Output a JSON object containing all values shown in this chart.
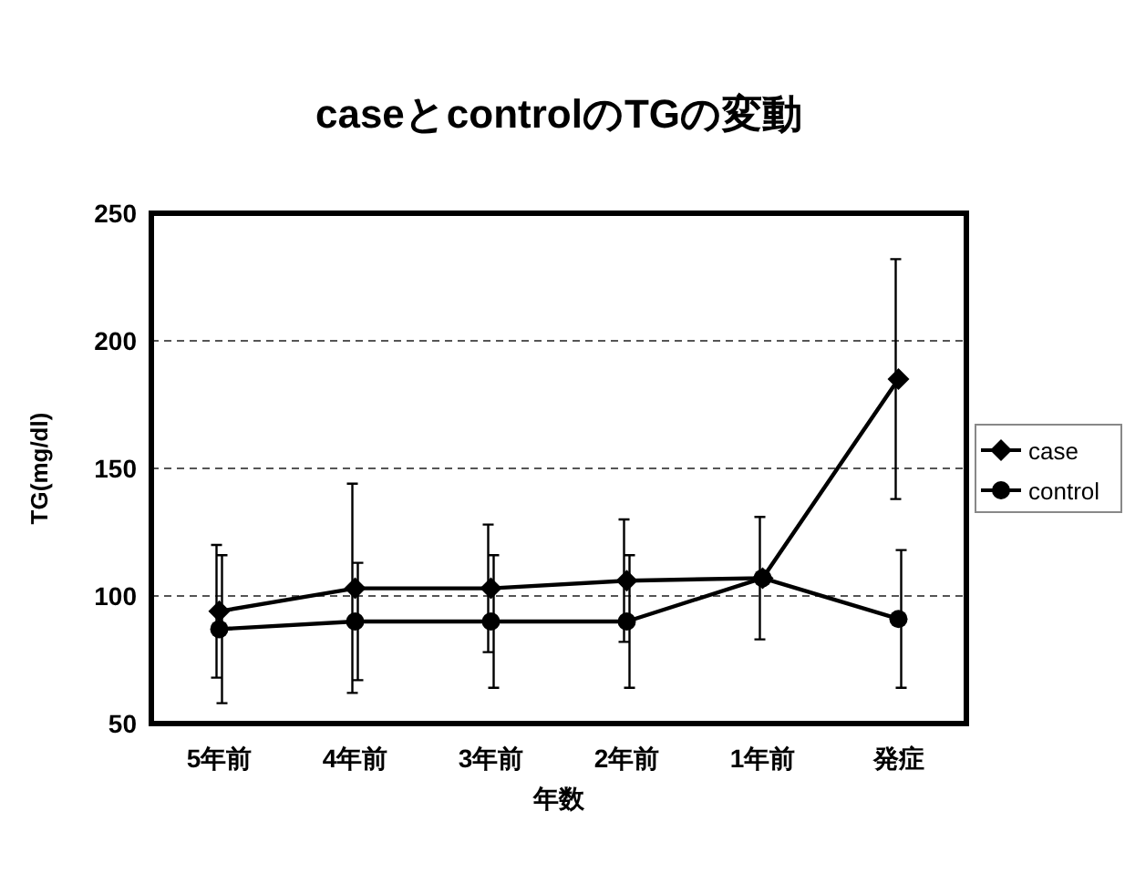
{
  "chart_data": {
    "type": "line",
    "title": "caseとcontrolのTGの変動",
    "xlabel": "年数",
    "ylabel": "TG(mg/dl)",
    "categories": [
      "5年前",
      "4年前",
      "3年前",
      "2年前",
      "1年前",
      "発症"
    ],
    "series": [
      {
        "name": "case",
        "color": "#000000",
        "marker": "diamond",
        "values": [
          94,
          103,
          103,
          106,
          107,
          185
        ],
        "errors": [
          26,
          41,
          25,
          24,
          24,
          47
        ]
      },
      {
        "name": "control",
        "color": "#000000",
        "marker": "circle",
        "values": [
          87,
          90,
          90,
          90,
          107,
          91
        ],
        "errors": [
          29,
          23,
          26,
          26,
          null,
          27
        ]
      }
    ],
    "ylim": [
      50,
      250
    ],
    "yticks": [
      50,
      100,
      150,
      200,
      250
    ],
    "grid": "y",
    "legend": "right",
    "line_style": "solid"
  }
}
